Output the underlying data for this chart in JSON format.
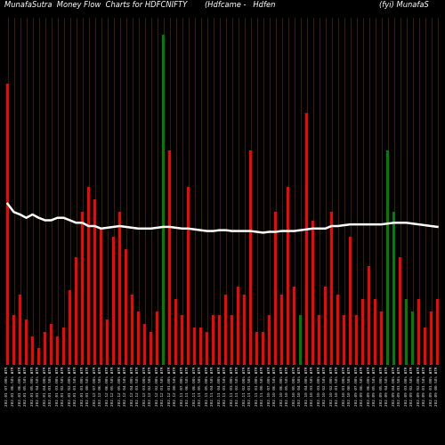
{
  "title_left": "MunafaSutra  Money Flow  Charts for HDFCNIFTY",
  "title_center": "(Hdfcame -   Hdfen",
  "title_right": "(fyi) MunafaS",
  "background_color": "#000000",
  "grid_color": "#8B4500",
  "line_color": "#ffffff",
  "line_width": 1.8,
  "figsize": [
    5.0,
    5.0
  ],
  "dpi": 100,
  "n_bars": 70,
  "bar_width": 0.55,
  "ylim_max": 420,
  "colors": [
    "red",
    "red",
    "red",
    "red",
    "red",
    "red",
    "red",
    "red",
    "red",
    "red",
    "red",
    "red",
    "red",
    "red",
    "red",
    "red",
    "red",
    "red",
    "red",
    "red",
    "red",
    "red",
    "red",
    "red",
    "red",
    "green",
    "red",
    "red",
    "red",
    "red",
    "red",
    "red",
    "red",
    "red",
    "red",
    "red",
    "red",
    "red",
    "red",
    "red",
    "red",
    "red",
    "red",
    "red",
    "red",
    "red",
    "red",
    "green",
    "red",
    "red",
    "red",
    "red",
    "red",
    "red",
    "red",
    "red",
    "red",
    "red",
    "red",
    "red",
    "red",
    "green",
    "green",
    "red",
    "green",
    "green",
    "red",
    "red",
    "red",
    "red"
  ],
  "heights": [
    340,
    60,
    85,
    55,
    35,
    20,
    40,
    50,
    35,
    45,
    90,
    130,
    185,
    215,
    200,
    165,
    55,
    155,
    185,
    140,
    85,
    65,
    50,
    40,
    65,
    400,
    260,
    80,
    60,
    215,
    45,
    45,
    40,
    60,
    60,
    85,
    60,
    95,
    85,
    260,
    40,
    40,
    60,
    185,
    85,
    215,
    95,
    60,
    305,
    175,
    60,
    95,
    185,
    85,
    60,
    155,
    60,
    80,
    120,
    80,
    65,
    260,
    185,
    130,
    80,
    65,
    80,
    45,
    65,
    80
  ],
  "line_y": [
    195,
    185,
    182,
    178,
    182,
    178,
    175,
    175,
    178,
    178,
    175,
    172,
    172,
    168,
    168,
    165,
    166,
    167,
    168,
    167,
    166,
    165,
    165,
    165,
    166,
    167,
    167,
    166,
    165,
    165,
    164,
    163,
    162,
    162,
    163,
    163,
    162,
    162,
    162,
    162,
    161,
    160,
    161,
    161,
    162,
    162,
    162,
    163,
    164,
    165,
    165,
    165,
    168,
    168,
    169,
    170,
    170,
    170,
    170,
    170,
    170,
    171,
    172,
    172,
    172,
    171,
    170,
    169,
    168,
    167
  ],
  "xlabel_fontsize": 3.2,
  "title_fontsize": 6.0,
  "labels": [
    "202-01 07.00% ATR",
    "202-01 06.50% ATR",
    "202-01 06.00% ATR",
    "202-01 05.50% ATR",
    "202-01 05.00% ATR",
    "202-01 04.50% ATR",
    "202-01 04.00% ATR",
    "202-01 03.50% ATR",
    "202-01 03.00% ATR",
    "202-01 02.50% ATR",
    "202-01 02.00% ATR",
    "202-01 01.50% ATR",
    "202-01 01.00% ATR",
    "202-01 00.50% ATR",
    "202-12 07.00% ATR",
    "202-12 06.50% ATR",
    "202-12 06.00% ATR",
    "202-12 05.50% ATR",
    "202-12 05.00% ATR",
    "202-12 04.50% ATR",
    "202-12 04.00% ATR",
    "202-12 03.50% ATR",
    "202-12 03.00% ATR",
    "202-12 02.50% ATR",
    "202-12 02.00% ATR",
    "202-12 01.50% ATR",
    "202-12 01.00% ATR",
    "202-12 00.50% ATR",
    "202-11 07.00% ATR",
    "202-11 06.50% ATR",
    "202-11 06.00% ATR",
    "202-11 05.50% ATR",
    "202-11 05.00% ATR",
    "202-11 04.50% ATR",
    "202-11 04.00% ATR",
    "202-11 03.50% ATR",
    "202-11 03.00% ATR",
    "202-11 02.50% ATR",
    "202-11 02.00% ATR",
    "202-11 01.50% ATR",
    "202-11 01.00% ATR",
    "202-11 00.50% ATR",
    "202-10 07.00% ATR",
    "202-10 06.50% ATR",
    "202-10 06.00% ATR",
    "202-10 05.50% ATR",
    "202-10 05.00% ATR",
    "202-10 04.50% ATR",
    "202-10 04.00% ATR",
    "202-10 03.50% ATR",
    "202-10 03.00% ATR",
    "202-10 02.50% ATR",
    "202-10 02.00% ATR",
    "202-10 01.50% ATR",
    "202-10 01.00% ATR",
    "202-10 00.50% ATR",
    "202-09 07.00% ATR",
    "202-09 06.50% ATR",
    "202-09 06.00% ATR",
    "202-09 05.50% ATR",
    "202-09 05.00% ATR",
    "202-09 04.50% ATR",
    "202-09 04.00% ATR",
    "202-09 03.50% ATR",
    "202-09 03.00% ATR",
    "202-09 02.50% ATR",
    "202-09 02.00% ATR",
    "202-09 01.50% ATR",
    "202-09 01.00% ATR",
    "202-09 00.50% ATR"
  ]
}
